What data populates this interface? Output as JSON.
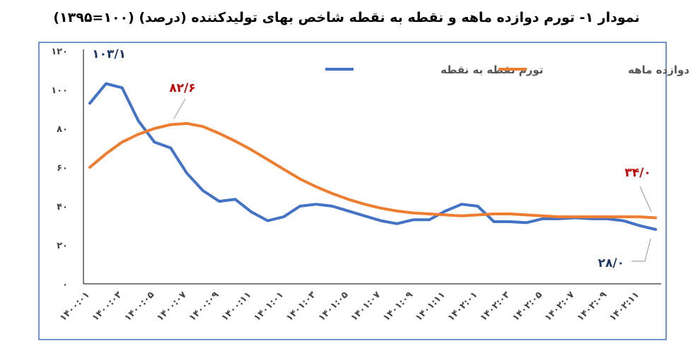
{
  "chart_data": {
    "type": "line",
    "title": "نمودار ۱- تورم دوازده ماهه و نقطه به نقطه شاخص بهای تولیدکننده (درصد) (۱۰۰=۱۳۹۵)",
    "xlabel": "",
    "ylabel": "",
    "ylim": [
      0,
      120
    ],
    "y_ticks": [
      0,
      20,
      40,
      60,
      80,
      100,
      120
    ],
    "y_tick_labels": [
      "۰",
      "۲۰",
      "۴۰",
      "۶۰",
      "۸۰",
      "۱۰۰",
      "۱۲۰"
    ],
    "x_tick_labels": [
      "۱۴۰۰:۰۱",
      "۱۴۰۰:۰۳",
      "۱۴۰۰:۰۵",
      "۱۴۰۰:۰۷",
      "۱۴۰۰:۰۹",
      "۱۴۰۰:۱۱",
      "۱۴۰۱:۰۱",
      "۱۴۰۱:۰۳",
      "۱۴۰۱:۰۵",
      "۱۴۰۱:۰۷",
      "۱۴۰۱:۰۹",
      "۱۴۰۱:۱۱",
      "۱۴۰۲:۰۱",
      "۱۴۰۲:۰۳",
      "۱۴۰۲:۰۵",
      "۱۴۰۲:۰۷",
      "۱۴۰۲:۰۹",
      "۱۴۰۲:۱۱"
    ],
    "grid": false,
    "legend_position": "top",
    "series": [
      {
        "name": "تورم نقطه به نقطه",
        "color": "#4472C4",
        "values": [
          93,
          103.1,
          101,
          84,
          73,
          70,
          57,
          48,
          42.5,
          43.5,
          37,
          32.5,
          34.5,
          40,
          41,
          40,
          37.5,
          35,
          32.5,
          31,
          33,
          33,
          37.5,
          41,
          40,
          32,
          32,
          31.5,
          33.5,
          33.5,
          34,
          33.5,
          33.5,
          32.5,
          30,
          28.0
        ]
      },
      {
        "name": "تورم دوازده ماهه",
        "color": "#ED7D31",
        "values": [
          60,
          67,
          73,
          77,
          80,
          82,
          82.6,
          81,
          77.5,
          73.5,
          69,
          64,
          59,
          54,
          50,
          46.5,
          43.5,
          41,
          39,
          37.5,
          36.5,
          36,
          35.5,
          35,
          35.5,
          36,
          36,
          35.5,
          35,
          34.5,
          34.5,
          34.5,
          34.5,
          34.5,
          34.5,
          34.0
        ]
      }
    ],
    "annotations": [
      {
        "label": "۱۰۳/۱",
        "series": 0,
        "point": 1,
        "color": "#1F3864"
      },
      {
        "label": "۸۲/۶",
        "series": 1,
        "point": 6,
        "color": "#C00000"
      },
      {
        "label": "۳۴/۰",
        "series": 1,
        "point": 35,
        "color": "#C00000"
      },
      {
        "label": "۲۸/۰",
        "series": 0,
        "point": 35,
        "color": "#1F3864"
      }
    ]
  }
}
